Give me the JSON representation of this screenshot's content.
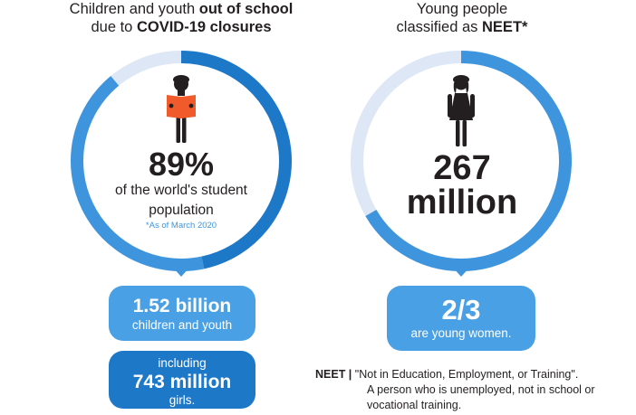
{
  "left_panel": {
    "title_plain": "Children and youth ",
    "title_bold_1": "out of school",
    "title_plain_2": "due to ",
    "title_bold_2": "COVID-19 closures",
    "percent": "89%",
    "desc_line1": "of the world's student",
    "desc_line2": "population",
    "note": "*As of March 2020",
    "ring_fill_fraction": 0.89,
    "pill1": {
      "value": "1.52 billion",
      "label": "children and youth"
    },
    "pill2": {
      "prefix": "including",
      "value": "743 million",
      "suffix": "girls."
    }
  },
  "right_panel": {
    "title_line1": "Young people",
    "title_plain": "classified as ",
    "title_bold": "NEET*",
    "number_line1": "267",
    "number_line2": "million",
    "pill": {
      "value": "2/3",
      "label": "are young women."
    }
  },
  "footnote": {
    "term": "NEET |",
    "definition_line1": "\"Not in Education, Employment, or Training\".",
    "definition_line2": "A person who is unemployed, not in school or",
    "definition_line3": "vocational training."
  },
  "colors": {
    "ring_main": "#3f95dd",
    "ring_dark": "#1e78c8",
    "ring_track": "#dde7f5",
    "girl_icon": "#231f20",
    "book": "#f15a2b",
    "pill_light": "#4aa0e4",
    "pill_dark": "#1e78c8"
  },
  "icons": {
    "left": "girl-reading-book-icon",
    "right": "girl-figure-icon"
  }
}
